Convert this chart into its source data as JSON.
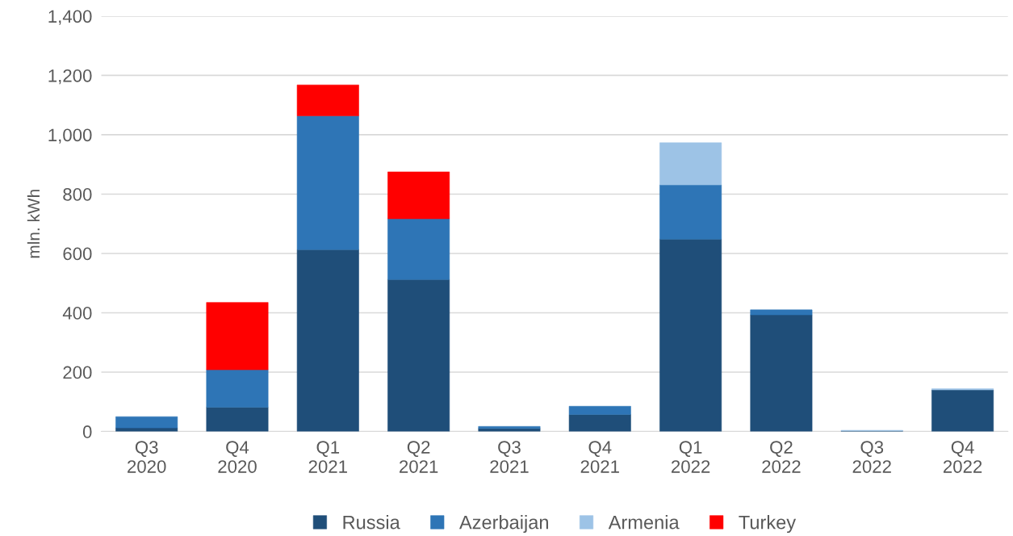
{
  "chart_data": {
    "type": "bar",
    "stacked": true,
    "ylabel": "mln. kWh",
    "categories": [
      "Q3\n2020",
      "Q4\n2020",
      "Q1\n2021",
      "Q2\n2021",
      "Q3\n2021",
      "Q4\n2021",
      "Q1\n2022",
      "Q2\n2022",
      "Q3\n2022",
      "Q4\n2022"
    ],
    "series": [
      {
        "name": "Russia",
        "color": "#1f4e79",
        "values": [
          12,
          82,
          613,
          512,
          10,
          57,
          648,
          393,
          2,
          140
        ]
      },
      {
        "name": "Azerbaijan",
        "color": "#2e75b6",
        "values": [
          38,
          126,
          451,
          205,
          7,
          28,
          183,
          17,
          null,
          null
        ]
      },
      {
        "name": "Armenia",
        "color": "#9dc3e6",
        "values": [
          null,
          null,
          null,
          null,
          null,
          null,
          142,
          null,
          2,
          4
        ]
      },
      {
        "name": "Turkey",
        "color": "#ff0000",
        "values": [
          null,
          227,
          104,
          158,
          null,
          null,
          null,
          null,
          null,
          null
        ]
      }
    ],
    "ylim": [
      0,
      1400
    ],
    "yticks": [
      {
        "value": 0,
        "label": "0"
      },
      {
        "value": 200,
        "label": "200"
      },
      {
        "value": 400,
        "label": "400"
      },
      {
        "value": 600,
        "label": "600"
      },
      {
        "value": 800,
        "label": "800"
      },
      {
        "value": 1000,
        "label": "1,000"
      },
      {
        "value": 1200,
        "label": "1,200"
      },
      {
        "value": 1400,
        "label": "1,400"
      }
    ],
    "grid": "y",
    "legend": "bottom"
  }
}
